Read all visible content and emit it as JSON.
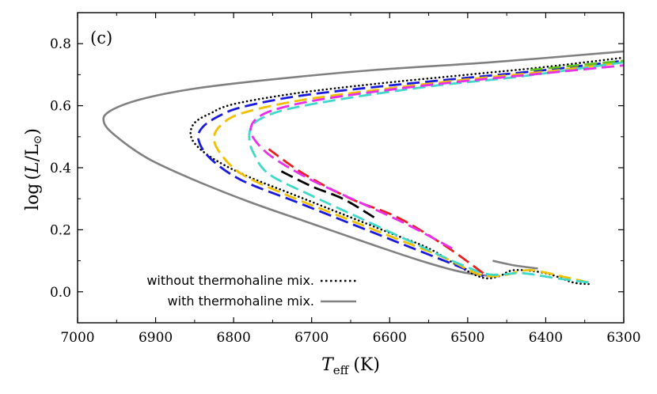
{
  "chart_data": {
    "type": "line",
    "panel_label": "(c)",
    "xlabel_main": "T",
    "xlabel_sub": "eff",
    "xlabel_unit": "(K)",
    "ylabel_prefix": "log",
    "ylabel_L": "L",
    "ylabel_Lsun": "L",
    "ylabel_sun": "⊙",
    "xlim": [
      7000,
      6300
    ],
    "ylim": [
      -0.1,
      0.9
    ],
    "x_axis_reversed": true,
    "xticks": [
      7000,
      6900,
      6800,
      6700,
      6600,
      6500,
      6400,
      6300
    ],
    "yticks": [
      0.0,
      0.2,
      0.4,
      0.6,
      0.8
    ],
    "xtick_labels": [
      "7000",
      "6900",
      "6800",
      "6700",
      "6600",
      "6500",
      "6400",
      "6300"
    ],
    "ytick_labels": [
      "0.0",
      "0.2",
      "0.4",
      "0.6",
      "0.8"
    ],
    "legend_position": "bottom-left",
    "legend": [
      {
        "label": "without thermohaline mix.",
        "style": "dotted",
        "color": "#000000"
      },
      {
        "label": "with thermohaline mix.",
        "style": "solid",
        "color": "#808080"
      }
    ],
    "series": [
      {
        "name": "with thermohaline mix.",
        "color": "#808080",
        "style": "solid",
        "width": 2.6,
        "x": [
          6475,
          6510,
          6560,
          6620,
          6700,
          6780,
          6850,
          6910,
          6950,
          6966,
          6960,
          6920,
          6850,
          6750,
          6620,
          6470,
          6300
        ],
        "y": [
          0.052,
          0.065,
          0.1,
          0.15,
          0.22,
          0.29,
          0.36,
          0.43,
          0.5,
          0.545,
          0.58,
          0.62,
          0.655,
          0.685,
          0.715,
          0.74,
          0.775
        ]
      },
      {
        "name": "",
        "color": "#808080",
        "style": "solid",
        "width": 2.6,
        "x": [
          6468,
          6440,
          6410
        ],
        "y": [
          0.1,
          0.085,
          0.075
        ]
      },
      {
        "name": "without thermohaline mix.",
        "color": "#000000",
        "style": "dotted",
        "width": 2.6,
        "x": [
          6345,
          6365,
          6400,
          6440,
          6460,
          6480,
          6510,
          6550,
          6600,
          6660,
          6720,
          6780,
          6820,
          6845,
          6855,
          6850,
          6830,
          6800,
          6720,
          6620,
          6500,
          6400,
          6300
        ],
        "y": [
          0.025,
          0.03,
          0.06,
          0.07,
          0.05,
          0.045,
          0.08,
          0.14,
          0.19,
          0.25,
          0.31,
          0.37,
          0.42,
          0.465,
          0.505,
          0.545,
          0.575,
          0.605,
          0.64,
          0.67,
          0.7,
          0.725,
          0.755
        ]
      },
      {
        "name": "",
        "color": "#1a1adc",
        "style": "dashed",
        "width": 2.8,
        "x": [
          6480,
          6520,
          6580,
          6650,
          6720,
          6790,
          6830,
          6845,
          6840,
          6820,
          6790,
          6720,
          6620,
          6500,
          6400,
          6300
        ],
        "y": [
          0.05,
          0.09,
          0.15,
          0.22,
          0.29,
          0.36,
          0.43,
          0.49,
          0.53,
          0.565,
          0.595,
          0.63,
          0.66,
          0.69,
          0.715,
          0.745
        ]
      },
      {
        "name": "",
        "color": "#f0c000",
        "style": "dashed",
        "width": 2.8,
        "x": [
          6345,
          6380,
          6420,
          6450,
          6470,
          6490,
          6530,
          6590,
          6660,
          6730,
          6790,
          6818,
          6825,
          6815,
          6790,
          6720,
          6620,
          6500,
          6400,
          6300
        ],
        "y": [
          0.03,
          0.05,
          0.07,
          0.055,
          0.05,
          0.06,
          0.11,
          0.17,
          0.24,
          0.31,
          0.38,
          0.45,
          0.5,
          0.54,
          0.575,
          0.615,
          0.65,
          0.685,
          0.71,
          0.74
        ]
      },
      {
        "name": "",
        "color": "#000000",
        "style": "dashed",
        "width": 2.8,
        "x": [
          6620,
          6660,
          6700,
          6740
        ],
        "y": [
          0.24,
          0.3,
          0.34,
          0.39
        ]
      },
      {
        "name": "",
        "color": "#40d8c8",
        "style": "dashed",
        "width": 2.8,
        "x": [
          6345,
          6390,
          6430,
          6460,
          6480,
          6520,
          6580,
          6640,
          6700,
          6755,
          6775,
          6780,
          6775,
          6755,
          6720,
          6640,
          6540,
          6430,
          6300
        ],
        "y": [
          0.03,
          0.045,
          0.06,
          0.055,
          0.06,
          0.1,
          0.17,
          0.24,
          0.31,
          0.38,
          0.45,
          0.5,
          0.54,
          0.57,
          0.595,
          0.63,
          0.665,
          0.695,
          0.74
        ]
      },
      {
        "name": "",
        "color": "#e82020",
        "style": "dashed",
        "width": 2.8,
        "x": [
          6480,
          6530,
          6590,
          6650,
          6710,
          6755
        ],
        "y": [
          0.06,
          0.15,
          0.24,
          0.3,
          0.38,
          0.46
        ]
      },
      {
        "name": "",
        "color": "#e830e8",
        "style": "dashed",
        "width": 2.8,
        "x": [
          6520,
          6580,
          6640,
          6700,
          6748,
          6770,
          6778,
          6772,
          6750,
          6700,
          6620,
          6520,
          6420,
          6300
        ],
        "y": [
          0.14,
          0.22,
          0.29,
          0.36,
          0.43,
          0.48,
          0.52,
          0.555,
          0.585,
          0.615,
          0.645,
          0.675,
          0.7,
          0.73
        ]
      },
      {
        "name": "",
        "color": "#60c020",
        "style": "dashed",
        "width": 2.8,
        "x": [
          6420,
          6360,
          6300
        ],
        "y": [
          0.715,
          0.73,
          0.745
        ]
      }
    ]
  }
}
